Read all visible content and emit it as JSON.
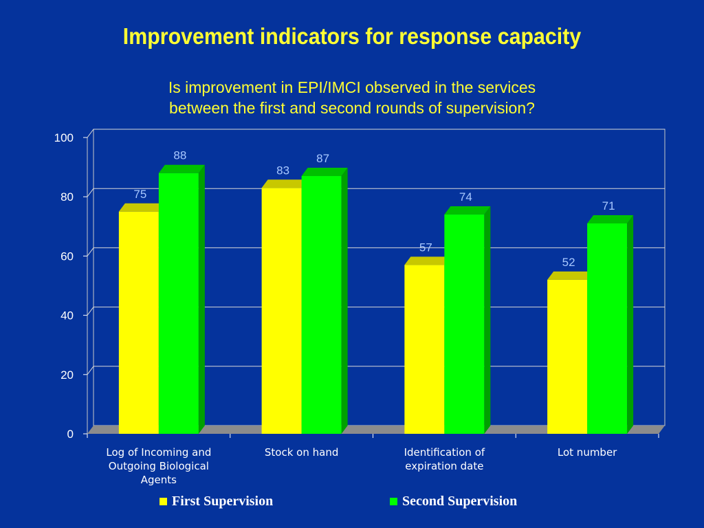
{
  "chart_data": {
    "type": "bar",
    "title": "Improvement indicators for response capacity",
    "subtitle": [
      "Is improvement in EPI/IMCI observed in the services",
      "between the first and second rounds of supervision?"
    ],
    "categories": [
      [
        "Log of Incoming and",
        "Outgoing Biological",
        "Agents"
      ],
      [
        "Stock on hand"
      ],
      [
        "Identification of",
        "expiration date"
      ],
      [
        "Lot number"
      ]
    ],
    "series": [
      {
        "name": "First Supervision",
        "color": "#ffff00",
        "values": [
          75,
          83,
          57,
          52
        ]
      },
      {
        "name": "Second Supervision",
        "color": "#00ff00",
        "values": [
          88,
          87,
          74,
          71
        ]
      }
    ],
    "yticks": [
      "0",
      "20",
      "40",
      "60",
      "80",
      "100"
    ],
    "ylim": [
      0,
      100
    ],
    "grid": true,
    "legend": "bottom"
  }
}
